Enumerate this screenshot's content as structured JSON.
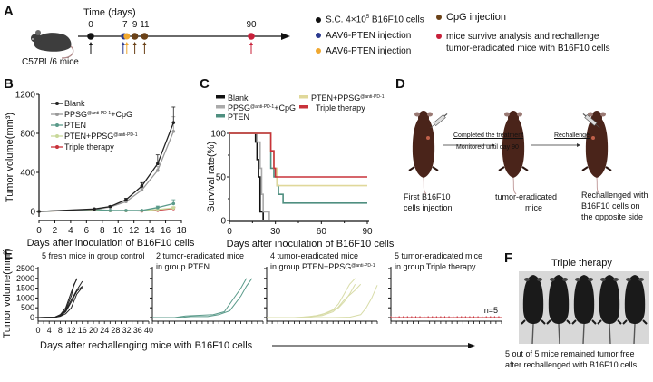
{
  "panels": {
    "A": {
      "letter": "A",
      "time_label": "Time (days)",
      "mouse_label": "C57BL/6 mice",
      "timepoints": [
        {
          "day": "0",
          "colors": [
            "#111111"
          ]
        },
        {
          "day": "7",
          "colors": [
            "#2b3a8f",
            "#f0a830"
          ]
        },
        {
          "day": "9",
          "colors": [
            "#6b4218"
          ]
        },
        {
          "day": "11",
          "colors": [
            "#6b4218"
          ]
        },
        {
          "day": "90",
          "colors": [
            "#c8203a"
          ]
        }
      ],
      "legend": [
        {
          "color": "#111111",
          "text": "S.C. 4×10",
          "sup": "5",
          "text2": " B16F10 cells"
        },
        {
          "color": "#2b3a8f",
          "text": "AAV6-PTEN injection"
        },
        {
          "color": "#f0a830",
          "text": "AAV6-PTEN injection"
        },
        {
          "color": "#6b4218",
          "text": "CpG injection"
        },
        {
          "color": "#c8203a",
          "text": "mice survive analysis and rechallenge",
          "text2": "tumor-eradicated mice with B16F10 cells"
        }
      ]
    },
    "B": {
      "letter": "B"
    },
    "C": {
      "letter": "C"
    },
    "D": {
      "letter": "D",
      "arrow1_top": "Completed the treatment",
      "arrow1_bottom": "Monitored until day 90",
      "arrow2_top": "Rechallenge",
      "caption1_l1": "First B16F10",
      "caption1_l2": "cells injection",
      "caption2_l1": "tumor-eradicated",
      "caption2_l2": "mice",
      "caption3_l1": "Rechallenged with",
      "caption3_l2": "B16F10 cells on",
      "caption3_l3": "the opposite side"
    },
    "E": {
      "letter": "E"
    },
    "F": {
      "letter": "F",
      "title": "Triple therapy",
      "caption_l1": "5 out of 5 mice remained tumor free",
      "caption_l2": "after rechallenged with B16F10 cells"
    }
  },
  "chart_data": [
    {
      "id": "B",
      "type": "line",
      "xlabel": "Days after inoculation of B16F10 cells",
      "ylabel": "Tumor volume(mm³)",
      "xlim": [
        0,
        18
      ],
      "ylim": [
        0,
        1200
      ],
      "xticks": [
        "0",
        "2",
        "4",
        "6",
        "8",
        "10",
        "12",
        "14",
        "16",
        "18"
      ],
      "yticks": [
        "0",
        "400",
        "800",
        "1200"
      ],
      "legend_position": "top-left",
      "series": [
        {
          "name": "Blank",
          "sup": "",
          "suffix": "",
          "color": "#222222",
          "marker": "circle",
          "x": [
            0,
            7,
            9,
            11,
            13,
            15,
            17
          ],
          "y": [
            0,
            25,
            50,
            120,
            260,
            490,
            910
          ],
          "err": [
            0,
            5,
            8,
            15,
            35,
            90,
            160
          ]
        },
        {
          "name": "PPSG",
          "sup": "@anti-PD-1",
          "suffix": "+CpG",
          "color": "#999999",
          "marker": "square",
          "x": [
            0,
            7,
            9,
            11,
            13,
            15,
            17
          ],
          "y": [
            0,
            22,
            45,
            100,
            220,
            420,
            820
          ],
          "err": [
            0,
            5,
            8,
            12,
            25,
            40,
            150
          ]
        },
        {
          "name": "PTEN",
          "sup": "",
          "suffix": "",
          "color": "#5a9a8a",
          "marker": "triangle",
          "x": [
            0,
            7,
            9,
            11,
            13,
            15,
            17
          ],
          "y": [
            0,
            20,
            10,
            10,
            10,
            40,
            80
          ],
          "err": [
            0,
            3,
            3,
            3,
            3,
            15,
            40
          ]
        },
        {
          "name": "PTEN+PPSG",
          "sup": "@anti-PD-1",
          "suffix": "",
          "color": "#c8d89a",
          "marker": "diamond",
          "x": [
            0,
            7,
            9,
            11,
            13,
            15,
            17
          ],
          "y": [
            0,
            18,
            8,
            8,
            8,
            20,
            35
          ],
          "err": [
            0,
            3,
            2,
            2,
            2,
            8,
            15
          ]
        },
        {
          "name": "Triple therapy",
          "sup": "",
          "suffix": "",
          "color": "#c8323a",
          "marker": "circle",
          "x": [
            0,
            7,
            9,
            11,
            13,
            15,
            17
          ],
          "y": [
            0,
            18,
            8,
            8,
            5,
            12,
            30
          ],
          "err": [
            0,
            2,
            2,
            2,
            2,
            6,
            10
          ]
        }
      ]
    },
    {
      "id": "C",
      "type": "line",
      "xlabel": "Days after inoculation of B16F10 cells",
      "ylabel": "Survival rate(%)",
      "xlim": [
        0,
        90
      ],
      "ylim": [
        0,
        100
      ],
      "xticks": [
        "0",
        "30",
        "60",
        "90"
      ],
      "yticks": [
        "0",
        "50",
        "100"
      ],
      "legend_position": "top",
      "series": [
        {
          "name": "Blank",
          "sup": "",
          "suffix": "",
          "color": "#111111",
          "steps": [
            [
              0,
              100
            ],
            [
              17,
              100
            ],
            [
              17,
              90
            ],
            [
              18,
              90
            ],
            [
              18,
              70
            ],
            [
              19,
              70
            ],
            [
              19,
              50
            ],
            [
              20,
              50
            ],
            [
              20,
              10
            ],
            [
              22,
              10
            ],
            [
              22,
              0
            ]
          ]
        },
        {
          "name": "PPSG",
          "sup": "@anti-PD-1",
          "suffix": "+CpG",
          "color": "#aaaaaa",
          "steps": [
            [
              0,
              100
            ],
            [
              18,
              100
            ],
            [
              18,
              90
            ],
            [
              20,
              90
            ],
            [
              20,
              60
            ],
            [
              21,
              60
            ],
            [
              21,
              30
            ],
            [
              22,
              30
            ],
            [
              22,
              10
            ],
            [
              26,
              10
            ],
            [
              26,
              0
            ]
          ]
        },
        {
          "name": "PTEN",
          "sup": "",
          "suffix": "",
          "color": "#4f8f80",
          "steps": [
            [
              0,
              100
            ],
            [
              27,
              100
            ],
            [
              27,
              60
            ],
            [
              29,
              60
            ],
            [
              29,
              50
            ],
            [
              31,
              50
            ],
            [
              31,
              40
            ],
            [
              32,
              40
            ],
            [
              32,
              30
            ],
            [
              35,
              30
            ],
            [
              35,
              20
            ],
            [
              90,
              20
            ]
          ]
        },
        {
          "name": "PTEN+PPSG",
          "sup": "@anti-PD-1",
          "suffix": "",
          "color": "#e0d89a",
          "steps": [
            [
              0,
              100
            ],
            [
              27,
              100
            ],
            [
              27,
              80
            ],
            [
              29,
              80
            ],
            [
              29,
              60
            ],
            [
              31,
              60
            ],
            [
              31,
              40
            ],
            [
              90,
              40
            ]
          ]
        },
        {
          "name": "Triple therapy",
          "sup": "",
          "suffix": "",
          "color": "#c8323a",
          "steps": [
            [
              0,
              100
            ],
            [
              27,
              100
            ],
            [
              27,
              80
            ],
            [
              29,
              80
            ],
            [
              29,
              60
            ],
            [
              30,
              60
            ],
            [
              30,
              50
            ],
            [
              90,
              50
            ]
          ]
        }
      ]
    },
    {
      "id": "E",
      "type": "line",
      "xlabel": "Days after rechallenging mice with B16F10 cells",
      "ylabel": "Tumor volume(mm³)",
      "xlim": [
        0,
        40
      ],
      "ylim": [
        0,
        2500
      ],
      "xticks": [
        "0",
        "4",
        "8",
        "12",
        "16",
        "20",
        "24",
        "28",
        "32",
        "36",
        "40"
      ],
      "yticks": [
        "0",
        "500",
        "1000",
        "1500",
        "2000",
        "2500"
      ],
      "subplots": [
        {
          "title_l1": "5 fresh  mice in group control",
          "title_l2": "",
          "title_sup": "",
          "color": "#222222",
          "curves": [
            [
              [
                0,
                0
              ],
              [
                6,
                20
              ],
              [
                8,
                150
              ],
              [
                10,
                500
              ],
              [
                12,
                1300
              ],
              [
                14,
                2000
              ]
            ],
            [
              [
                0,
                0
              ],
              [
                6,
                15
              ],
              [
                8,
                120
              ],
              [
                10,
                400
              ],
              [
                12,
                1100
              ],
              [
                13,
                1700
              ],
              [
                14,
                1950
              ]
            ],
            [
              [
                0,
                0
              ],
              [
                6,
                10
              ],
              [
                8,
                100
              ],
              [
                10,
                350
              ],
              [
                12,
                900
              ],
              [
                14,
                1400
              ],
              [
                16,
                1850
              ]
            ],
            [
              [
                0,
                0
              ],
              [
                6,
                10
              ],
              [
                8,
                80
              ],
              [
                10,
                300
              ],
              [
                12,
                800
              ],
              [
                14,
                1350
              ],
              [
                16,
                1600
              ]
            ],
            [
              [
                0,
                0
              ],
              [
                6,
                10
              ],
              [
                8,
                60
              ],
              [
                10,
                200
              ],
              [
                12,
                500
              ],
              [
                14,
                1200
              ],
              [
                16,
                1550
              ]
            ]
          ]
        },
        {
          "title_l1": "2 tumor-eradicated mice",
          "title_l2": "in group PTEN",
          "title_sup": "",
          "color": "#5a9a8a",
          "curves": [
            [
              [
                0,
                0
              ],
              [
                8,
                0
              ],
              [
                12,
                80
              ],
              [
                18,
                120
              ],
              [
                22,
                150
              ],
              [
                26,
                300
              ],
              [
                30,
                1100
              ],
              [
                32,
                1500
              ],
              [
                34,
                2000
              ]
            ],
            [
              [
                0,
                0
              ],
              [
                10,
                0
              ],
              [
                14,
                50
              ],
              [
                20,
                50
              ],
              [
                24,
                150
              ],
              [
                28,
                350
              ],
              [
                32,
                1100
              ],
              [
                34,
                1600
              ],
              [
                36,
                2000
              ]
            ]
          ]
        },
        {
          "title_l1": "4 tumor-eradicated mice",
          "title_l2": "in group PTEN+PPSG",
          "title_sup": "@anti-PD-1",
          "color": "#d8dca8",
          "curves": [
            [
              [
                0,
                0
              ],
              [
                10,
                0
              ],
              [
                16,
                50
              ],
              [
                20,
                150
              ],
              [
                24,
                400
              ],
              [
                26,
                700
              ],
              [
                28,
                1200
              ],
              [
                30,
                1700
              ],
              [
                32,
                2000
              ]
            ],
            [
              [
                0,
                0
              ],
              [
                12,
                0
              ],
              [
                18,
                100
              ],
              [
                22,
                250
              ],
              [
                26,
                500
              ],
              [
                28,
                800
              ],
              [
                30,
                1200
              ],
              [
                32,
                1700
              ]
            ],
            [
              [
                0,
                0
              ],
              [
                12,
                0
              ],
              [
                20,
                100
              ],
              [
                24,
                300
              ],
              [
                26,
                550
              ],
              [
                28,
                900
              ],
              [
                32,
                1400
              ],
              [
                34,
                1700
              ]
            ],
            [
              [
                0,
                0
              ],
              [
                24,
                0
              ],
              [
                30,
                20
              ],
              [
                34,
                150
              ],
              [
                36,
                500
              ],
              [
                38,
                1000
              ],
              [
                40,
                1650
              ]
            ]
          ]
        },
        {
          "title_l1": "5 tumor-eradicated mice",
          "title_l2": "in group Triple therapy",
          "title_sup": "",
          "color": "#c8323a",
          "annotation": "n=5",
          "curves": [
            [
              [
                0,
                0
              ],
              [
                40,
                0
              ]
            ]
          ]
        }
      ]
    }
  ]
}
